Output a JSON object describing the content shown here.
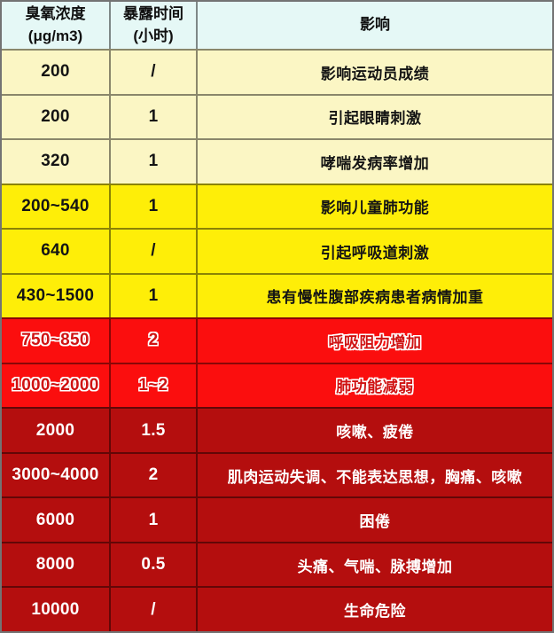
{
  "colors": {
    "header_bg": "#e5f8f6",
    "cream_bg": "#fbf6c4",
    "yellow_bg": "#feee08",
    "red_bg": "#fb0e0e",
    "darkred_bg": "#b40e0e",
    "border": "rgba(0,0,0,0.45)",
    "light_text": "#141414",
    "white_text": "#ffffff",
    "red_row_text": "#cf1212"
  },
  "header": {
    "col1_line1": "臭氧浓度",
    "col1_line2": "(μg/m3)",
    "col2_line1": "暴露时间",
    "col2_line2": "(小时)",
    "col3": "影响"
  },
  "rows": [
    {
      "concentration": "200",
      "time": "/",
      "effect": "影响运动员成绩",
      "severity": "cream"
    },
    {
      "concentration": "200",
      "time": "1",
      "effect": "引起眼睛刺激",
      "severity": "cream"
    },
    {
      "concentration": "320",
      "time": "1",
      "effect": "哮喘发病率增加",
      "severity": "cream"
    },
    {
      "concentration": "200~540",
      "time": "1",
      "effect": "影响儿童肺功能",
      "severity": "yellow"
    },
    {
      "concentration": "640",
      "time": "/",
      "effect": "引起呼吸道刺激",
      "severity": "yellow"
    },
    {
      "concentration": "430~1500",
      "time": "1",
      "effect": "患有慢性腹部疾病患者病情加重",
      "severity": "yellow"
    },
    {
      "concentration": "750~850",
      "time": "2",
      "effect": "呼吸阻力增加",
      "severity": "red"
    },
    {
      "concentration": "1000~2000",
      "time": "1~2",
      "effect": "肺功能减弱",
      "severity": "red"
    },
    {
      "concentration": "2000",
      "time": "1.5",
      "effect": "咳嗽、疲倦",
      "severity": "darkred"
    },
    {
      "concentration": "3000~4000",
      "time": "2",
      "effect": "肌肉运动失调、不能表达思想，胸痛、咳嗽",
      "severity": "darkred"
    },
    {
      "concentration": "6000",
      "time": "1",
      "effect": "困倦",
      "severity": "darkred"
    },
    {
      "concentration": "8000",
      "time": "0.5",
      "effect": "头痛、气喘、脉搏增加",
      "severity": "darkred"
    },
    {
      "concentration": "10000",
      "time": "/",
      "effect": "生命危险",
      "severity": "darkred"
    }
  ],
  "chart_data": {
    "type": "table",
    "columns": [
      "臭氧浓度 (μg/m3)",
      "暴露时间 (小时)",
      "影响"
    ],
    "rows": [
      [
        "200",
        "/",
        "影响运动员成绩"
      ],
      [
        "200",
        "1",
        "引起眼睛刺激"
      ],
      [
        "320",
        "1",
        "哮喘发病率增加"
      ],
      [
        "200~540",
        "1",
        "影响儿童肺功能"
      ],
      [
        "640",
        "/",
        "引起呼吸道刺激"
      ],
      [
        "430~1500",
        "1",
        "患有慢性腹部疾病患者病情加重"
      ],
      [
        "750~850",
        "2",
        "呼吸阻力增加"
      ],
      [
        "1000~2000",
        "1~2",
        "肺功能减弱"
      ],
      [
        "2000",
        "1.5",
        "咳嗽、疲倦"
      ],
      [
        "3000~4000",
        "2",
        "肌肉运动失调、不能表达思想，胸痛、咳嗽"
      ],
      [
        "6000",
        "1",
        "困倦"
      ],
      [
        "8000",
        "0.5",
        "头痛、气喘、脉搏增加"
      ],
      [
        "10000",
        "/",
        "生命危险"
      ]
    ],
    "row_colors": [
      "cream",
      "cream",
      "cream",
      "yellow",
      "yellow",
      "yellow",
      "red",
      "red",
      "darkred",
      "darkred",
      "darkred",
      "darkred",
      "darkred"
    ],
    "legend_position": "none",
    "grid": true
  }
}
